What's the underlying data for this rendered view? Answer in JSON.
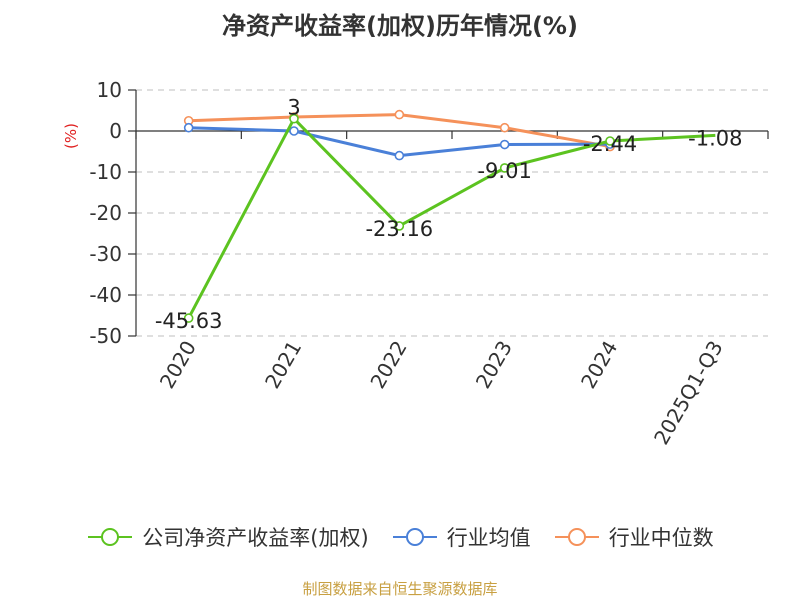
{
  "chart_data": {
    "type": "line",
    "title": "净资产收益率(加权)历年情况(%)",
    "ylabel": "(%)",
    "categories": [
      "2020",
      "2021",
      "2022",
      "2023",
      "2024",
      "2025Q1-Q3"
    ],
    "ylim": [
      -50,
      10
    ],
    "yticks": [
      10,
      0,
      -10,
      -20,
      -30,
      -40,
      -50
    ],
    "grid": "horizontal-dashed",
    "legend_position": "bottom",
    "series": [
      {
        "name": "公司净资产收益率(加权)",
        "color": "#5cc320",
        "values": [
          -45.63,
          3,
          -23.16,
          -9.01,
          -2.44,
          -1.08
        ],
        "labels": [
          "-45.63",
          "3",
          "-23.16",
          "-9.01",
          "-2.44",
          "-1.08"
        ],
        "markers": [
          true,
          true,
          true,
          true,
          true,
          false
        ]
      },
      {
        "name": "行业均值",
        "color": "#4a80d8",
        "values": [
          0.8,
          0,
          -6,
          -3.3,
          -3.2,
          null
        ],
        "markers": [
          true,
          true,
          true,
          true,
          true,
          false
        ]
      },
      {
        "name": "行业中位数",
        "color": "#f5915a",
        "values": [
          2.5,
          3.4,
          4,
          0.8,
          -3.8,
          null
        ],
        "markers": [
          true,
          true,
          true,
          true,
          true,
          false
        ]
      }
    ]
  },
  "footer": "制图数据来自恒生聚源数据库"
}
